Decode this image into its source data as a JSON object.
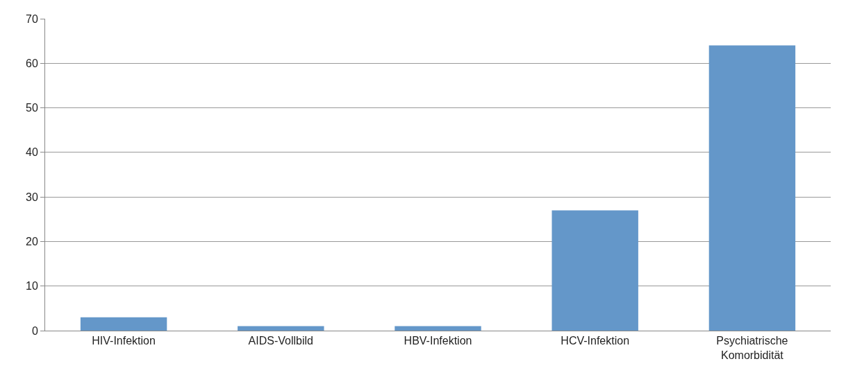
{
  "chart_data": {
    "type": "bar",
    "categories": [
      "HIV-Infektion",
      "AIDS-Vollbild",
      "HBV-Infektion",
      "HCV-Infektion",
      "Psychiatrische Komorbidität"
    ],
    "values": [
      3,
      1,
      1,
      27,
      64
    ],
    "color": "#6497c9",
    "ylim": [
      0,
      70
    ],
    "yticks": [
      0,
      10,
      20,
      30,
      40,
      50,
      60,
      70
    ],
    "grid": "y"
  }
}
